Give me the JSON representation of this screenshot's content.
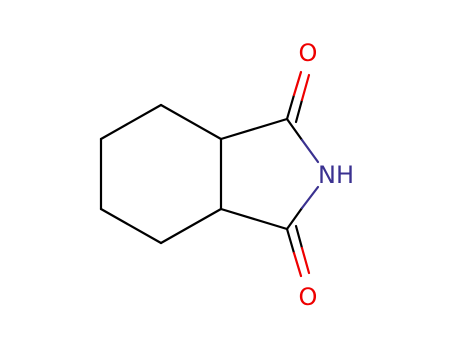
{
  "atoms": [
    {
      "label": "O"
    },
    {
      "label": "NH"
    },
    {
      "label": "O"
    }
  ]
}
